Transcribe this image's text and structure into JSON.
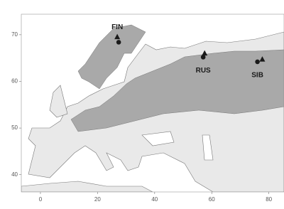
{
  "chart_data": {
    "type": "scatter",
    "xlim": [
      -6.7,
      85.3
    ],
    "ylim": [
      36.3,
      74.4
    ],
    "xticks": [
      0,
      20,
      40,
      60,
      80
    ],
    "yticks": [
      40,
      50,
      60,
      70
    ],
    "series": [
      {
        "marker": "triangle",
        "color": "#1a1a1a",
        "x": [
          26.9,
          57.5,
          77.7
        ],
        "y": [
          69.5,
          66.0,
          64.7
        ]
      },
      {
        "marker": "circle",
        "color": "#1a1a1a",
        "x": [
          27.4,
          57.0,
          76.0
        ],
        "y": [
          68.4,
          65.2,
          64.2
        ]
      }
    ],
    "annotations": [
      "FIN",
      "RUS",
      "SIB"
    ]
  }
}
